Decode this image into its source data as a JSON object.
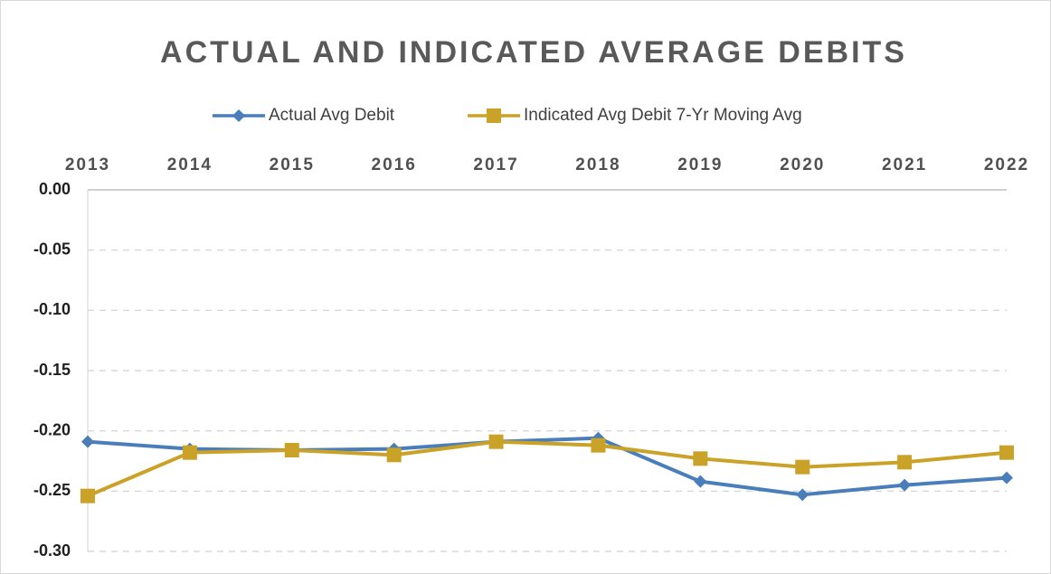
{
  "chart_data": {
    "type": "line",
    "title": "ACTUAL AND INDICATED AVERAGE DEBITS",
    "categories": [
      "2013",
      "2014",
      "2015",
      "2016",
      "2017",
      "2018",
      "2019",
      "2020",
      "2021",
      "2022"
    ],
    "series": [
      {
        "name": "Actual Avg Debit",
        "color": "#4a7ebb",
        "marker": "diamond",
        "values": [
          -0.209,
          -0.215,
          -0.216,
          -0.215,
          -0.209,
          -0.206,
          -0.242,
          -0.253,
          -0.245,
          -0.239
        ]
      },
      {
        "name": "Indicated Avg Debit 7-Yr Moving Avg",
        "color": "#c9a227",
        "marker": "square",
        "values": [
          -0.254,
          -0.218,
          -0.216,
          -0.22,
          -0.209,
          -0.212,
          -0.223,
          -0.23,
          -0.226,
          -0.218
        ]
      }
    ],
    "ylim": [
      -0.3,
      0
    ],
    "yticks": [
      {
        "value": 0,
        "label": "0.00"
      },
      -0.05,
      {
        "value": -0.1,
        "label": "-0.10"
      },
      -0.15,
      {
        "value": -0.2,
        "label": "-0.20"
      },
      -0.25,
      {
        "value": -0.3,
        "label": "-0.30"
      }
    ],
    "grid": true,
    "legend": "top",
    "x_axis_position": "top"
  }
}
